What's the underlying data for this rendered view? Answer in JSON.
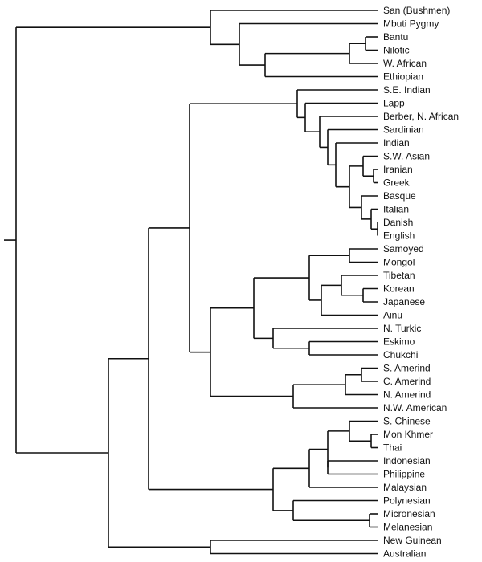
{
  "dendrogram": {
    "populations": [
      "San (Bushmen)",
      "Mbuti Pygmy",
      "Bantu",
      "Nilotic",
      "W. African",
      "Ethiopian",
      "S.E. Indian",
      "Lapp",
      "Berber, N. African",
      "Sardinian",
      "Indian",
      "S.W. Asian",
      "Iranian",
      "Greek",
      "Basque",
      "Italian",
      "Danish",
      "English",
      "Samoyed",
      "Mongol",
      "Tibetan",
      "Korean",
      "Japanese",
      "Ainu",
      "N. Turkic",
      "Eskimo",
      "Chukchi",
      "S. Amerind",
      "C. Amerind",
      "N. Amerind",
      "N.W. American",
      "S. Chinese",
      "Mon Khmer",
      "Thai",
      "Indonesian",
      "Philippine",
      "Malaysian",
      "Polynesian",
      "Micronesian",
      "Melanesian",
      "New Guinean",
      "Australian"
    ]
  }
}
